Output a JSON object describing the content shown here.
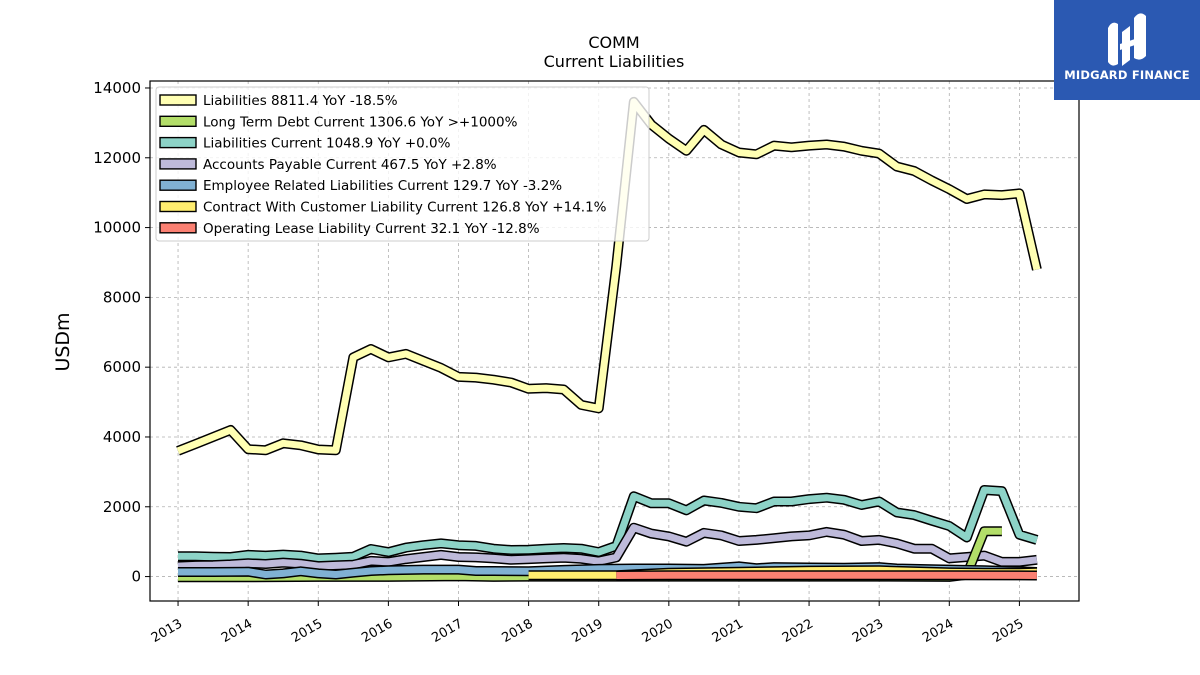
{
  "brand": {
    "name": "MIDGARD FINANCE",
    "logo_icon": "midgard-logo-icon",
    "bg_color": "#2b59b2"
  },
  "chart_data": {
    "type": "line",
    "title": "COMM",
    "subtitle": "Current  Liabilities",
    "ylabel": "USDm",
    "xlabel": "",
    "xlim": [
      2012.6,
      2025.85
    ],
    "ylim": [
      -700,
      14200
    ],
    "yticks": [
      0,
      2000,
      4000,
      6000,
      8000,
      10000,
      12000,
      14000
    ],
    "xticks": [
      "2013",
      "2014",
      "2015",
      "2016",
      "2017",
      "2018",
      "2019",
      "2020",
      "2021",
      "2022",
      "2023",
      "2024",
      "2025"
    ],
    "grid": true,
    "legend_position": "top-left",
    "series": [
      {
        "name": "Liabilities",
        "legend": "Liabilities  8811.4 YoY -18.5%",
        "color": "#ffffb3",
        "x": [
          2013.0,
          2013.25,
          2013.5,
          2013.75,
          2014.0,
          2014.25,
          2014.5,
          2014.75,
          2015.0,
          2015.25,
          2015.5,
          2015.75,
          2016.0,
          2016.25,
          2016.5,
          2016.75,
          2017.0,
          2017.25,
          2017.5,
          2017.75,
          2018.0,
          2018.25,
          2018.5,
          2018.75,
          2019.0,
          2019.25,
          2019.5,
          2019.75,
          2020.0,
          2020.25,
          2020.5,
          2020.75,
          2021.0,
          2021.25,
          2021.5,
          2021.75,
          2022.0,
          2022.25,
          2022.5,
          2022.75,
          2023.0,
          2023.25,
          2023.5,
          2023.75,
          2024.0,
          2024.25,
          2024.5,
          2024.75,
          2025.0,
          2025.25
        ],
        "y": [
          3600,
          3800,
          4000,
          4200,
          3650,
          3620,
          3820,
          3760,
          3640,
          3620,
          6280,
          6520,
          6280,
          6380,
          6180,
          5980,
          5720,
          5700,
          5640,
          5560,
          5380,
          5400,
          5360,
          4920,
          4820,
          8900,
          13600,
          12950,
          12550,
          12200,
          12800,
          12380,
          12150,
          12100,
          12350,
          12300,
          12350,
          12380,
          12320,
          12200,
          12120,
          11750,
          11620,
          11350,
          11100,
          10820,
          10950,
          10930,
          10980,
          8800
        ]
      },
      {
        "name": "Long Term Debt Current",
        "legend": "Long Term Debt Current  1306.6 YoY >+1000%",
        "color": "#b3de69",
        "x": [
          2013.0,
          2014.0,
          2015.0,
          2016.0,
          2017.0,
          2017.5,
          2018.0,
          2019.0,
          2020.0,
          2021.0,
          2022.0,
          2023.0,
          2024.0,
          2024.25,
          2024.5,
          2024.75
        ],
        "y": [
          -20,
          -20,
          -10,
          -10,
          10,
          -10,
          0,
          0,
          0,
          0,
          0,
          0,
          -10,
          50,
          1300,
          1300
        ]
      },
      {
        "name": "Liabilities Current",
        "legend": "Liabilities Current  1048.9 YoY +0.0%",
        "color": "#8dd3c7",
        "x": [
          2013.0,
          2013.25,
          2013.5,
          2013.75,
          2014.0,
          2014.25,
          2014.5,
          2014.75,
          2015.0,
          2015.25,
          2015.5,
          2015.75,
          2016.0,
          2016.25,
          2016.5,
          2016.75,
          2017.0,
          2017.25,
          2017.5,
          2017.75,
          2018.0,
          2018.25,
          2018.5,
          2018.75,
          2019.0,
          2019.25,
          2019.5,
          2019.75,
          2020.0,
          2020.25,
          2020.5,
          2020.75,
          2021.0,
          2021.25,
          2021.5,
          2021.75,
          2022.0,
          2022.25,
          2022.5,
          2022.75,
          2023.0,
          2023.25,
          2023.5,
          2023.75,
          2024.0,
          2024.25,
          2024.5,
          2024.75,
          2025.0,
          2025.25
        ],
        "y": [
          580,
          580,
          570,
          560,
          620,
          600,
          630,
          600,
          520,
          540,
          570,
          790,
          700,
          830,
          900,
          950,
          900,
          880,
          800,
          760,
          770,
          800,
          820,
          800,
          700,
          880,
          2300,
          2100,
          2100,
          1900,
          2180,
          2110,
          2000,
          1960,
          2150,
          2150,
          2220,
          2260,
          2200,
          2050,
          2150,
          1840,
          1760,
          1600,
          1450,
          1120,
          2480,
          2450,
          1200,
          1050
        ]
      },
      {
        "name": "Accounts Payable Current",
        "legend": "Accounts Payable Current  467.5 YoY +2.8%",
        "color": "#bebada",
        "x": [
          2013.0,
          2013.25,
          2013.5,
          2013.75,
          2014.0,
          2014.25,
          2014.5,
          2014.75,
          2015.0,
          2015.25,
          2015.5,
          2015.75,
          2016.0,
          2016.25,
          2016.5,
          2016.75,
          2017.0,
          2017.25,
          2017.5,
          2017.75,
          2018.0,
          2018.25,
          2018.5,
          2018.75,
          2019.0,
          2019.25,
          2019.5,
          2019.75,
          2020.0,
          2020.25,
          2020.5,
          2020.75,
          2021.0,
          2021.25,
          2021.5,
          2021.75,
          2022.0,
          2022.25,
          2022.5,
          2022.75,
          2023.0,
          2023.25,
          2023.5,
          2023.75,
          2024.0,
          2024.25,
          2024.5,
          2024.75,
          2025.0,
          2025.25
        ],
        "y": [
          300,
          320,
          330,
          350,
          380,
          360,
          400,
          370,
          300,
          320,
          340,
          450,
          420,
          500,
          560,
          620,
          560,
          550,
          520,
          480,
          500,
          520,
          540,
          510,
          440,
          550,
          1400,
          1230,
          1150,
          1000,
          1250,
          1180,
          1020,
          1050,
          1100,
          1150,
          1180,
          1280,
          1200,
          1020,
          1050,
          950,
          800,
          800,
          520,
          560,
          600,
          420,
          420,
          480
        ]
      },
      {
        "name": "Employee Related Liabilities Current",
        "legend": "Employee Related Liabilities Current  129.7 YoY -3.2%",
        "color": "#80b1d3",
        "x": [
          2013.0,
          2013.5,
          2014.0,
          2014.25,
          2014.5,
          2014.75,
          2015.0,
          2015.25,
          2015.5,
          2015.75,
          2016.0,
          2016.5,
          2017.0,
          2017.25,
          2017.5,
          2018.0,
          2018.5,
          2019.0,
          2019.5,
          2020.0,
          2020.5,
          2021.0,
          2021.25,
          2021.5,
          2022.0,
          2022.5,
          2023.0,
          2023.25,
          2023.5,
          2024.0,
          2024.5,
          2025.0,
          2025.25
        ],
        "y": [
          130,
          130,
          140,
          60,
          90,
          150,
          90,
          60,
          110,
          160,
          180,
          200,
          200,
          160,
          160,
          150,
          190,
          220,
          230,
          230,
          220,
          290,
          240,
          270,
          260,
          250,
          270,
          230,
          220,
          200,
          180,
          150,
          130
        ]
      },
      {
        "name": "Contract With Customer Liability Current",
        "legend": "Contract With Customer Liability Current  126.8 YoY +14.1%",
        "color": "#ffed6f",
        "x": [
          2018.0,
          2019.25,
          2020.0,
          2021.0,
          2022.0,
          2023.0,
          2024.0,
          2024.5,
          2025.0,
          2025.25
        ],
        "y": [
          40,
          40,
          110,
          140,
          170,
          180,
          120,
          110,
          110,
          126
        ]
      },
      {
        "name": "Operating Lease Liability Current",
        "legend": "Operating Lease Liability Current  32.1 YoY -12.8%",
        "color": "#fb8072",
        "x": [
          2019.25,
          2020.0,
          2021.0,
          2022.0,
          2023.0,
          2024.0,
          2025.0,
          2025.25
        ],
        "y": [
          30,
          35,
          38,
          40,
          38,
          36,
          34,
          32
        ]
      }
    ]
  }
}
